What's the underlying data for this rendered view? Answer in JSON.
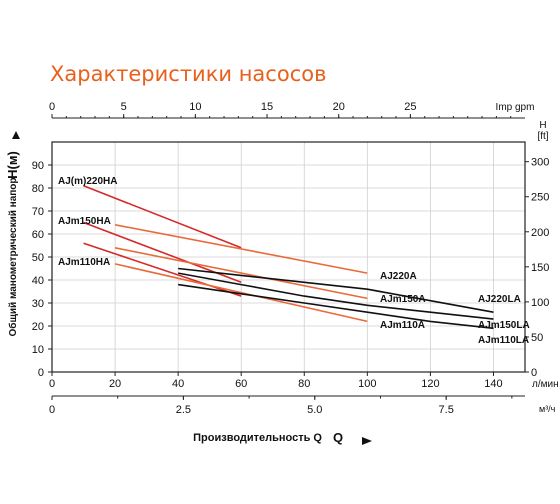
{
  "title": "Характеристики насосов",
  "chart_data": {
    "type": "line",
    "title": "Характеристики насосов",
    "xlabel": "Производительность Q",
    "ylabel": "Общий манометрический напор",
    "ylabel_unit": "H(м)",
    "x_axis": {
      "unit": "л/мин",
      "range": [
        0,
        150
      ],
      "ticks": [
        "0",
        "20",
        "40",
        "60",
        "80",
        "100",
        "120",
        "140"
      ]
    },
    "x2_axis": {
      "unit": "м³/ч",
      "ticks": [
        "0",
        "2.5",
        "5.0",
        "7.5"
      ]
    },
    "x_top_axis": {
      "unit": "Imp gpm",
      "ticks": [
        "0",
        "5",
        "10",
        "15",
        "20",
        "25"
      ]
    },
    "y_axis": {
      "range": [
        0,
        100
      ],
      "ticks": [
        "0",
        "10",
        "20",
        "30",
        "40",
        "50",
        "60",
        "70",
        "80",
        "90"
      ]
    },
    "y_right_axis": {
      "unit_top": "H",
      "unit": "[ft]",
      "ticks": [
        "0",
        "50",
        "100",
        "150",
        "200",
        "250",
        "300"
      ]
    },
    "grid": true,
    "series": [
      {
        "name": "AJ(m)220HA",
        "color": "#d42a2a",
        "x": [
          10,
          60
        ],
        "y": [
          81,
          54
        ]
      },
      {
        "name": "AJm150HA",
        "color": "#d42a2a",
        "x": [
          10,
          60
        ],
        "y": [
          65,
          39
        ]
      },
      {
        "name": "AJm110HA",
        "color": "#d42a2a",
        "x": [
          10,
          60
        ],
        "y": [
          56,
          33
        ]
      },
      {
        "name": "AJ220A",
        "color": "#ea6a3a",
        "x": [
          20,
          100
        ],
        "y": [
          64,
          43
        ]
      },
      {
        "name": "AJm150A",
        "color": "#ea6a3a",
        "x": [
          20,
          100
        ],
        "y": [
          54,
          32
        ]
      },
      {
        "name": "AJm110A",
        "color": "#ea6a3a",
        "x": [
          20,
          100
        ],
        "y": [
          47,
          22
        ]
      },
      {
        "name": "AJ220LA",
        "color": "#111111",
        "x": [
          40,
          60,
          80,
          100,
          120,
          140
        ],
        "y": [
          45,
          42,
          39,
          36,
          31,
          26
        ]
      },
      {
        "name": "AJm150LA",
        "color": "#111111",
        "x": [
          40,
          60,
          80,
          100,
          120,
          140
        ],
        "y": [
          43,
          38,
          33,
          29,
          26,
          23
        ]
      },
      {
        "name": "AJm110LA",
        "color": "#111111",
        "x": [
          40,
          60,
          80,
          100,
          120,
          140
        ],
        "y": [
          38,
          34,
          30,
          26,
          22,
          19
        ]
      }
    ],
    "labels": [
      "AJ(m)220HA",
      "AJm150HA",
      "AJm110HA",
      "AJ220A",
      "AJm150A",
      "AJm110A",
      "AJ220LA",
      "AJm150LA",
      "AJm110LA"
    ]
  }
}
